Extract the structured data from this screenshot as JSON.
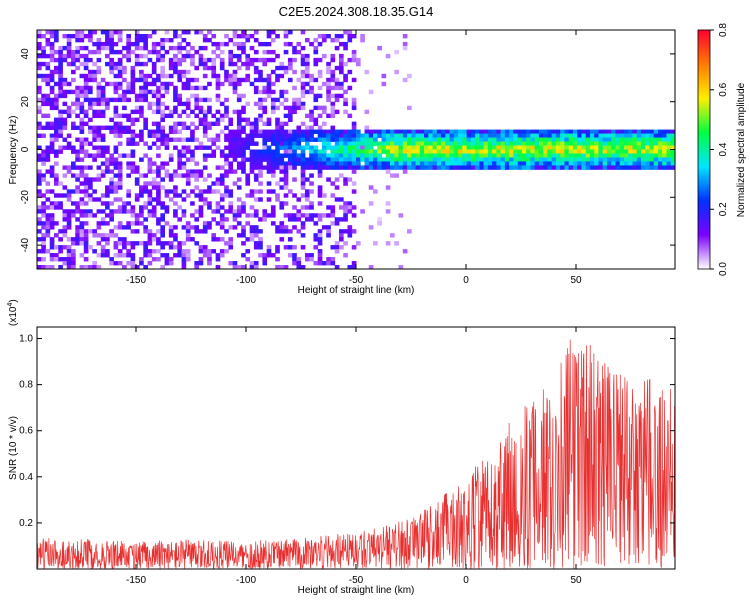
{
  "page_title": "C2E5.2024.308.18.35.G14",
  "chart_data": [
    {
      "type": "heatmap",
      "title": "C2E5.2024.308.18.35.G14",
      "xlabel": "Height of straight line (km)",
      "ylabel": "Frequency (Hz)",
      "xlim": [
        -195,
        95
      ],
      "ylim": [
        -50,
        50
      ],
      "x_ticks": [
        -150,
        -100,
        -50,
        0,
        50
      ],
      "y_ticks": [
        -40,
        -20,
        0,
        20,
        40
      ],
      "x_tick_labels": [
        "-150",
        "-100",
        "-50",
        "0",
        "50"
      ],
      "y_tick_labels": [
        "-40",
        "-20",
        "0",
        "20",
        "40"
      ],
      "colorbar": {
        "label": "Normalized spectral amplitude",
        "range": [
          0.0,
          0.8
        ],
        "ticks": [
          0.0,
          0.2,
          0.4,
          0.6,
          0.8
        ],
        "tick_labels": [
          "0.0",
          "0.2",
          "0.4",
          "0.6",
          "0.8"
        ],
        "colors": [
          "#ffffff",
          "#7c00ff",
          "#0030ff",
          "#00e5ff",
          "#00ff40",
          "#ffee00",
          "#ff7a00",
          "#ff0030"
        ]
      },
      "description_of_field": {
        "noise_region_x": [
          -195,
          -50
        ],
        "signal_band_center_hz": 0,
        "signal_band_halfwidth_hz": 8,
        "signal_start_x": -110
      },
      "grid": false
    },
    {
      "type": "line",
      "xlabel": "Height of straight line (km)",
      "ylabel": "SNR (10 * v/v)",
      "y_multiplier_label": "(x10",
      "y_multiplier_exp": "4",
      "y_multiplier_close": ")",
      "xlim": [
        -195,
        95
      ],
      "ylim": [
        0,
        1.05
      ],
      "x_ticks": [
        -150,
        -100,
        -50,
        0,
        50
      ],
      "y_ticks": [
        0.2,
        0.4,
        0.6,
        0.8,
        1.0
      ],
      "x_tick_labels": [
        "-150",
        "-100",
        "-50",
        "0",
        "50"
      ],
      "y_tick_labels": [
        "0.2",
        "0.4",
        "0.6",
        "0.8",
        "1.0"
      ],
      "series": [
        {
          "color": "#e83030",
          "envelope": {
            "x": [
              -195,
              -150,
              -130,
              -100,
              -60,
              -40,
              -20,
              0,
              20,
              40,
              50,
              70,
              95
            ],
            "min": [
              0.0,
              0.0,
              0.0,
              0.0,
              0.0,
              0.0,
              0.0,
              0.0,
              0.0,
              0.0,
              0.0,
              0.0,
              0.0
            ],
            "max": [
              0.14,
              0.12,
              0.13,
              0.12,
              0.15,
              0.18,
              0.25,
              0.4,
              0.65,
              0.85,
              1.05,
              0.85,
              0.8
            ]
          }
        }
      ],
      "grid": false
    }
  ]
}
